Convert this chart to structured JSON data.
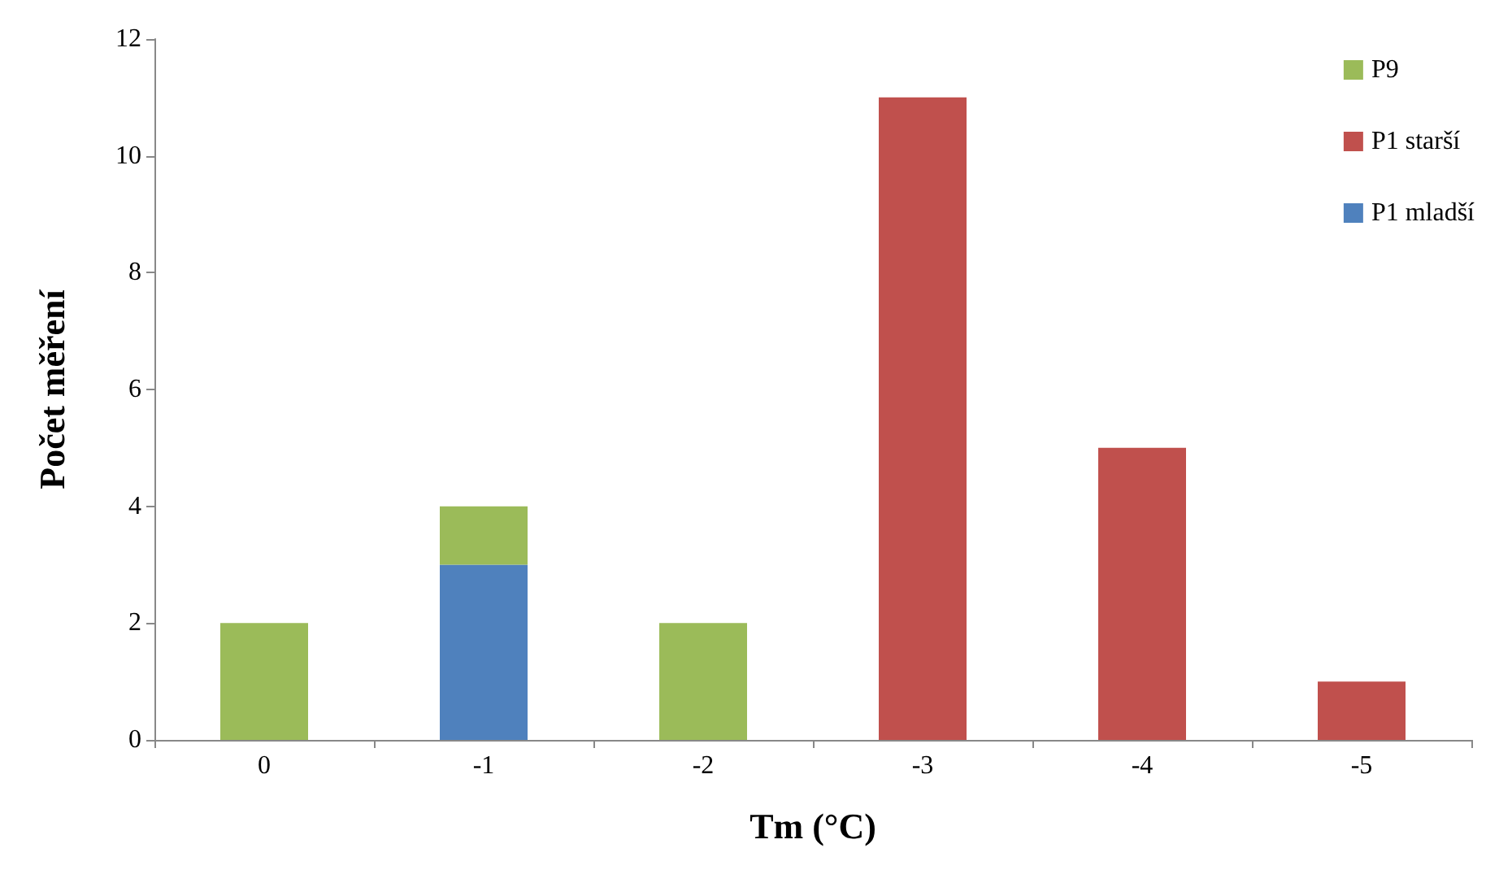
{
  "chart_data": {
    "type": "bar",
    "stacked": true,
    "xlabel": "Tm (°C)",
    "ylabel": "Počet měření",
    "categories": [
      "0",
      "-1",
      "-2",
      "-3",
      "-4",
      "-5"
    ],
    "series": [
      {
        "name": "P1 mladší",
        "color": "#4f81bd",
        "values": [
          null,
          3,
          null,
          null,
          null,
          null
        ]
      },
      {
        "name": "P1 starší",
        "color": "#c0504d",
        "values": [
          null,
          null,
          null,
          11,
          5,
          1
        ]
      },
      {
        "name": "P9",
        "color": "#9bbb59",
        "values": [
          2,
          1,
          2,
          null,
          null,
          null
        ]
      }
    ],
    "ylim": [
      0,
      12
    ],
    "yticks": [
      0,
      2,
      4,
      6,
      8,
      10,
      12
    ],
    "grid": false,
    "legend": "top right"
  }
}
